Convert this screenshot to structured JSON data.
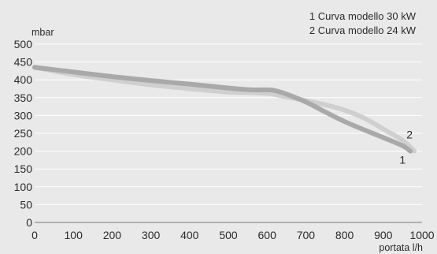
{
  "legend": {
    "line1": "1 Curva modello 30 kW",
    "line2": "2 Curva modello 24 kW"
  },
  "chart_data": {
    "type": "line",
    "ylabel": "mbar",
    "xlabel": "portata l/h",
    "xlim": [
      0,
      1000
    ],
    "ylim": [
      0,
      500
    ],
    "x_ticks": [
      0,
      100,
      200,
      300,
      400,
      500,
      600,
      700,
      800,
      900,
      1000
    ],
    "y_ticks": [
      0,
      50,
      100,
      150,
      200,
      250,
      300,
      350,
      400,
      450,
      500
    ],
    "grid": "horizontal",
    "series": [
      {
        "name": "1 Curva modello 30 kW",
        "label": "1",
        "color": "#a9a9a9",
        "x": [
          0,
          100,
          200,
          300,
          400,
          500,
          560,
          600,
          620,
          650,
          700,
          750,
          800,
          850,
          900,
          950,
          970
        ],
        "y": [
          435,
          422,
          409,
          398,
          388,
          377,
          372,
          372,
          370,
          360,
          338,
          310,
          283,
          260,
          238,
          215,
          200
        ]
      },
      {
        "name": "2 Curva modello 24 kW",
        "label": "2",
        "color": "#cfcfcf",
        "x": [
          0,
          100,
          200,
          300,
          400,
          500,
          600,
          650,
          700,
          750,
          800,
          850,
          900,
          950,
          980
        ],
        "y": [
          435,
          415,
          400,
          386,
          375,
          366,
          362,
          352,
          342,
          330,
          315,
          293,
          262,
          230,
          200
        ]
      }
    ]
  }
}
